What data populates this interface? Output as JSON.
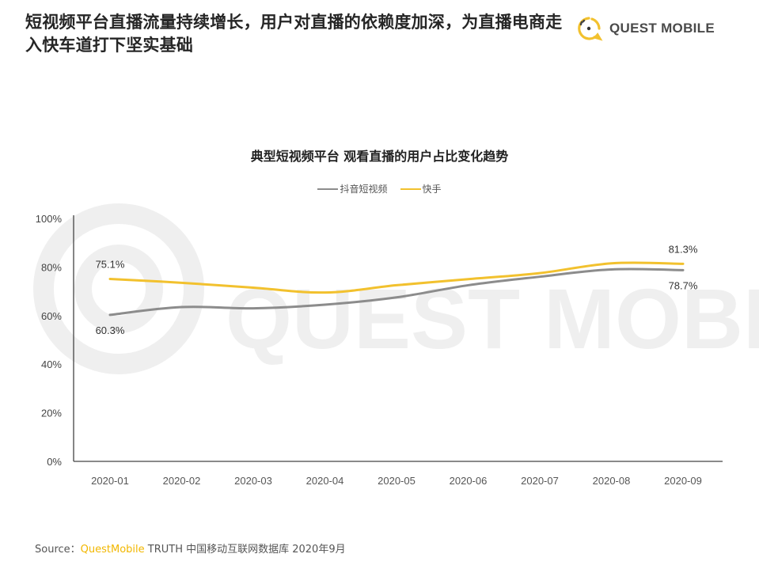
{
  "header": {
    "headline": "短视频平台直播流量持续增长，用户对直播的依赖度加深，为直播电商走入快车道打下坚实基础",
    "logo_text": "QUEST MOBILE",
    "logo_icon": "quest-mobile-logo-icon"
  },
  "watermark": "QUEST MOBILE",
  "colors": {
    "kuaishou": "#f2c12e",
    "douyin": "#8c8c8c",
    "brand": "#f2b700",
    "axis": "#444444"
  },
  "chart_data": {
    "type": "line",
    "title": "典型短视频平台 观看直播的用户占比变化趋势",
    "xlabel": "",
    "ylabel": "",
    "categories": [
      "2020-01",
      "2020-02",
      "2020-03",
      "2020-04",
      "2020-05",
      "2020-06",
      "2020-07",
      "2020-08",
      "2020-09"
    ],
    "series": [
      {
        "name": "抖音短视频",
        "color": "#8c8c8c",
        "values": [
          60.3,
          63.5,
          63.0,
          64.5,
          67.5,
          72.5,
          76.0,
          79.0,
          78.7
        ]
      },
      {
        "name": "快手",
        "color": "#f2c12e",
        "values": [
          75.1,
          73.5,
          71.5,
          69.5,
          72.5,
          75.0,
          77.5,
          81.5,
          81.3
        ]
      }
    ],
    "y_ticks": [
      "0%",
      "20%",
      "40%",
      "60%",
      "80%",
      "100%"
    ],
    "ylim": [
      0,
      100
    ],
    "grid": false,
    "legend_position": "top-center",
    "annotations": [
      {
        "series": "快手",
        "point": "2020-01",
        "label": "75.1%"
      },
      {
        "series": "抖音短视频",
        "point": "2020-01",
        "label": "60.3%"
      },
      {
        "series": "快手",
        "point": "2020-09",
        "label": "81.3%"
      },
      {
        "series": "抖音短视频",
        "point": "2020-09",
        "label": "78.7%"
      }
    ]
  },
  "legend": {
    "items": [
      {
        "label": "抖音短视频"
      },
      {
        "label": "快手"
      }
    ]
  },
  "footer": {
    "source_prefix": "Source：",
    "source_brand": "QuestMobile",
    "source_rest": " TRUTH 中国移动互联网数据库 2020年9月"
  }
}
